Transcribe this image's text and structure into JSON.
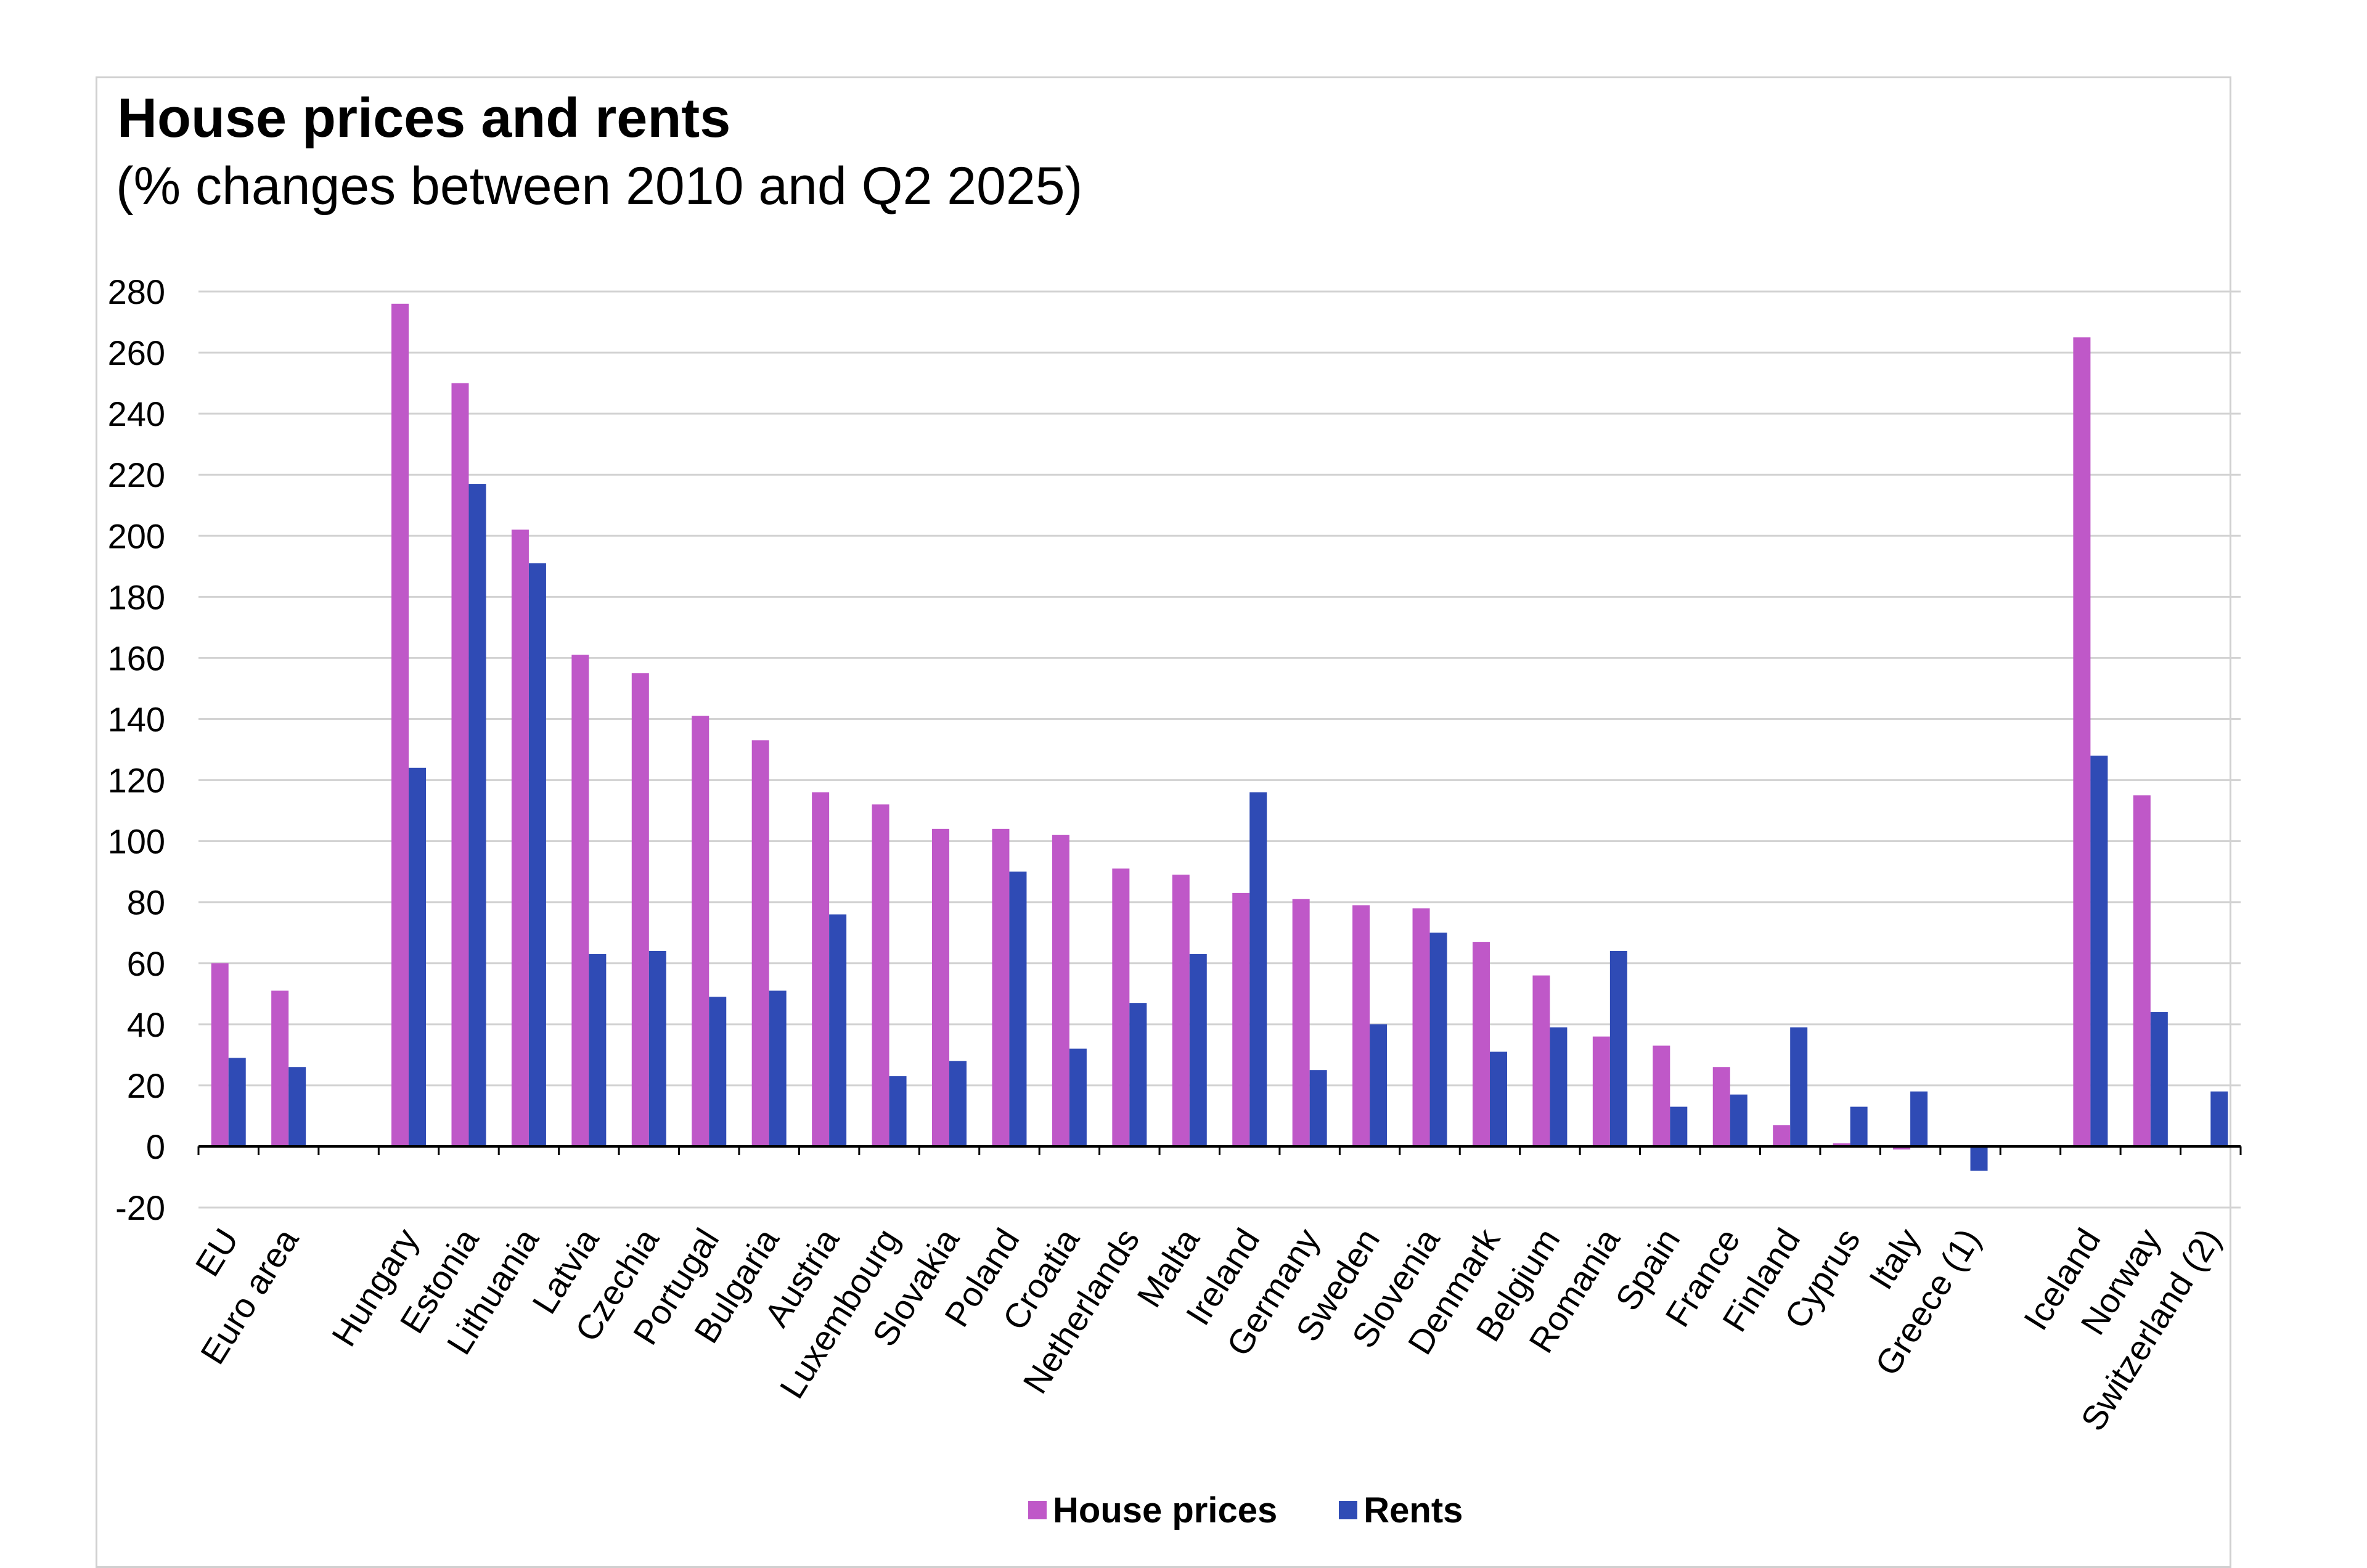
{
  "chart_data": {
    "type": "bar",
    "title": "House prices and rents",
    "subtitle": "(% changes between 2010 and Q2 2025)",
    "xlabel": "",
    "ylabel": "",
    "ylim": [
      -20,
      280
    ],
    "yticks": [
      -20,
      0,
      20,
      40,
      60,
      80,
      100,
      120,
      140,
      160,
      180,
      200,
      220,
      240,
      260,
      280
    ],
    "grid": true,
    "legend_position": "bottom",
    "categories": [
      "EU",
      "Euro area",
      "Hungary",
      "Estonia",
      "Lithuania",
      "Latvia",
      "Czechia",
      "Portugal",
      "Bulgaria",
      "Austria",
      "Luxembourg",
      "Slovakia",
      "Poland",
      "Croatia",
      "Netherlands",
      "Malta",
      "Ireland",
      "Germany",
      "Sweden",
      "Slovenia",
      "Denmark",
      "Belgium",
      "Romania",
      "Spain",
      "France",
      "Finland",
      "Cyprus",
      "Italy",
      "Greece (1)",
      "Iceland",
      "Norway",
      "Switzerland (2)"
    ],
    "category_slots": [
      0,
      1,
      3,
      4,
      5,
      6,
      7,
      8,
      9,
      10,
      11,
      12,
      13,
      14,
      15,
      16,
      17,
      18,
      19,
      20,
      21,
      22,
      23,
      24,
      25,
      26,
      27,
      28,
      29,
      31,
      32,
      33
    ],
    "series": [
      {
        "name": "House prices",
        "color": "#bf58c8",
        "values": [
          60,
          51,
          276,
          250,
          202,
          161,
          155,
          141,
          133,
          116,
          112,
          104,
          104,
          102,
          91,
          89,
          83,
          81,
          79,
          78,
          67,
          56,
          36,
          33,
          26,
          7,
          1,
          -1,
          null,
          265,
          115,
          null
        ]
      },
      {
        "name": "Rents",
        "color": "#2f4bb5",
        "values": [
          29,
          26,
          124,
          217,
          191,
          63,
          64,
          49,
          51,
          76,
          23,
          28,
          90,
          32,
          47,
          63,
          116,
          25,
          40,
          70,
          31,
          39,
          64,
          13,
          17,
          39,
          13,
          18,
          -8,
          128,
          44,
          18
        ]
      }
    ]
  }
}
